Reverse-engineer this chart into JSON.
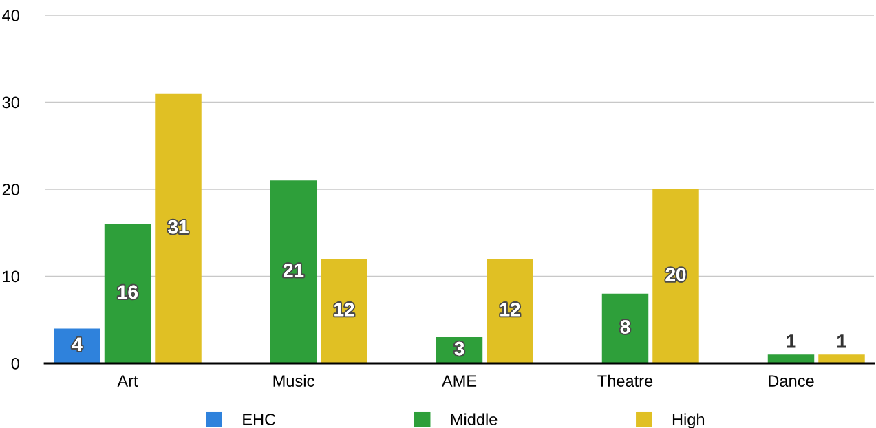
{
  "chart_data": {
    "type": "bar",
    "categories": [
      "Art",
      "Music",
      "AME",
      "Theatre",
      "Dance"
    ],
    "series": [
      {
        "name": "EHC",
        "color": "#2f82dc",
        "values": [
          4,
          null,
          null,
          null,
          null
        ]
      },
      {
        "name": "Middle",
        "color": "#2e9f3a",
        "values": [
          16,
          21,
          3,
          8,
          1
        ]
      },
      {
        "name": "High",
        "color": "#e0c024",
        "values": [
          31,
          12,
          12,
          20,
          1
        ]
      }
    ],
    "ylim": [
      0,
      40
    ],
    "yticks": [
      0,
      10,
      20,
      30,
      40
    ],
    "grid": "y",
    "legend": "bottom",
    "data_labels": true
  }
}
